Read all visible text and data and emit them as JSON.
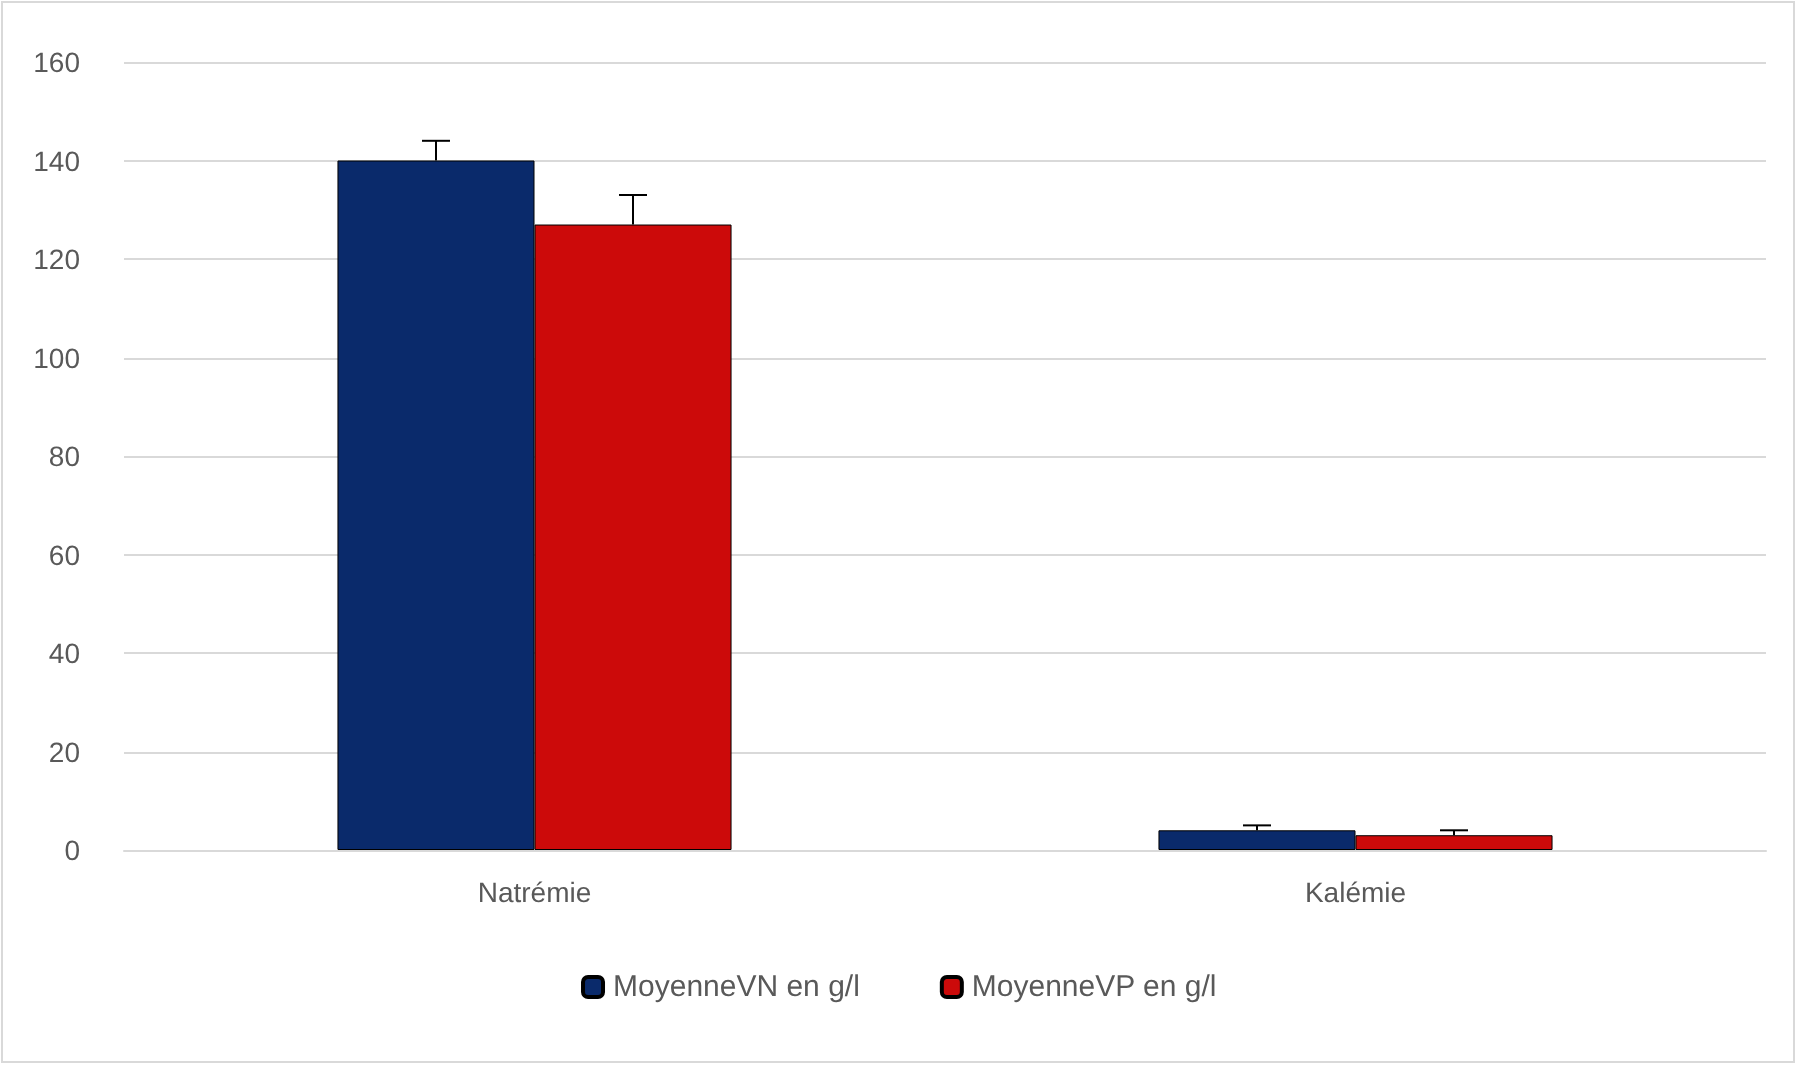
{
  "chart_data": {
    "type": "bar",
    "categories": [
      "Natrémie",
      "Kalémie"
    ],
    "series": [
      {
        "name": "MoyenneVN en g/l",
        "color": "#0a2a6b",
        "values": [
          140,
          4
        ],
        "errors": [
          [
            140,
            144
          ],
          [
            4,
            5
          ]
        ]
      },
      {
        "name": "MoyenneVP en g/l",
        "color": "#cc0a0a",
        "values": [
          127,
          3
        ],
        "errors": [
          [
            127,
            133
          ],
          [
            3,
            4
          ]
        ]
      }
    ],
    "ylim": [
      0,
      160
    ],
    "yticks": [
      0,
      20,
      40,
      60,
      80,
      100,
      120,
      140,
      160
    ],
    "grid": "y",
    "legend": "bottom"
  }
}
